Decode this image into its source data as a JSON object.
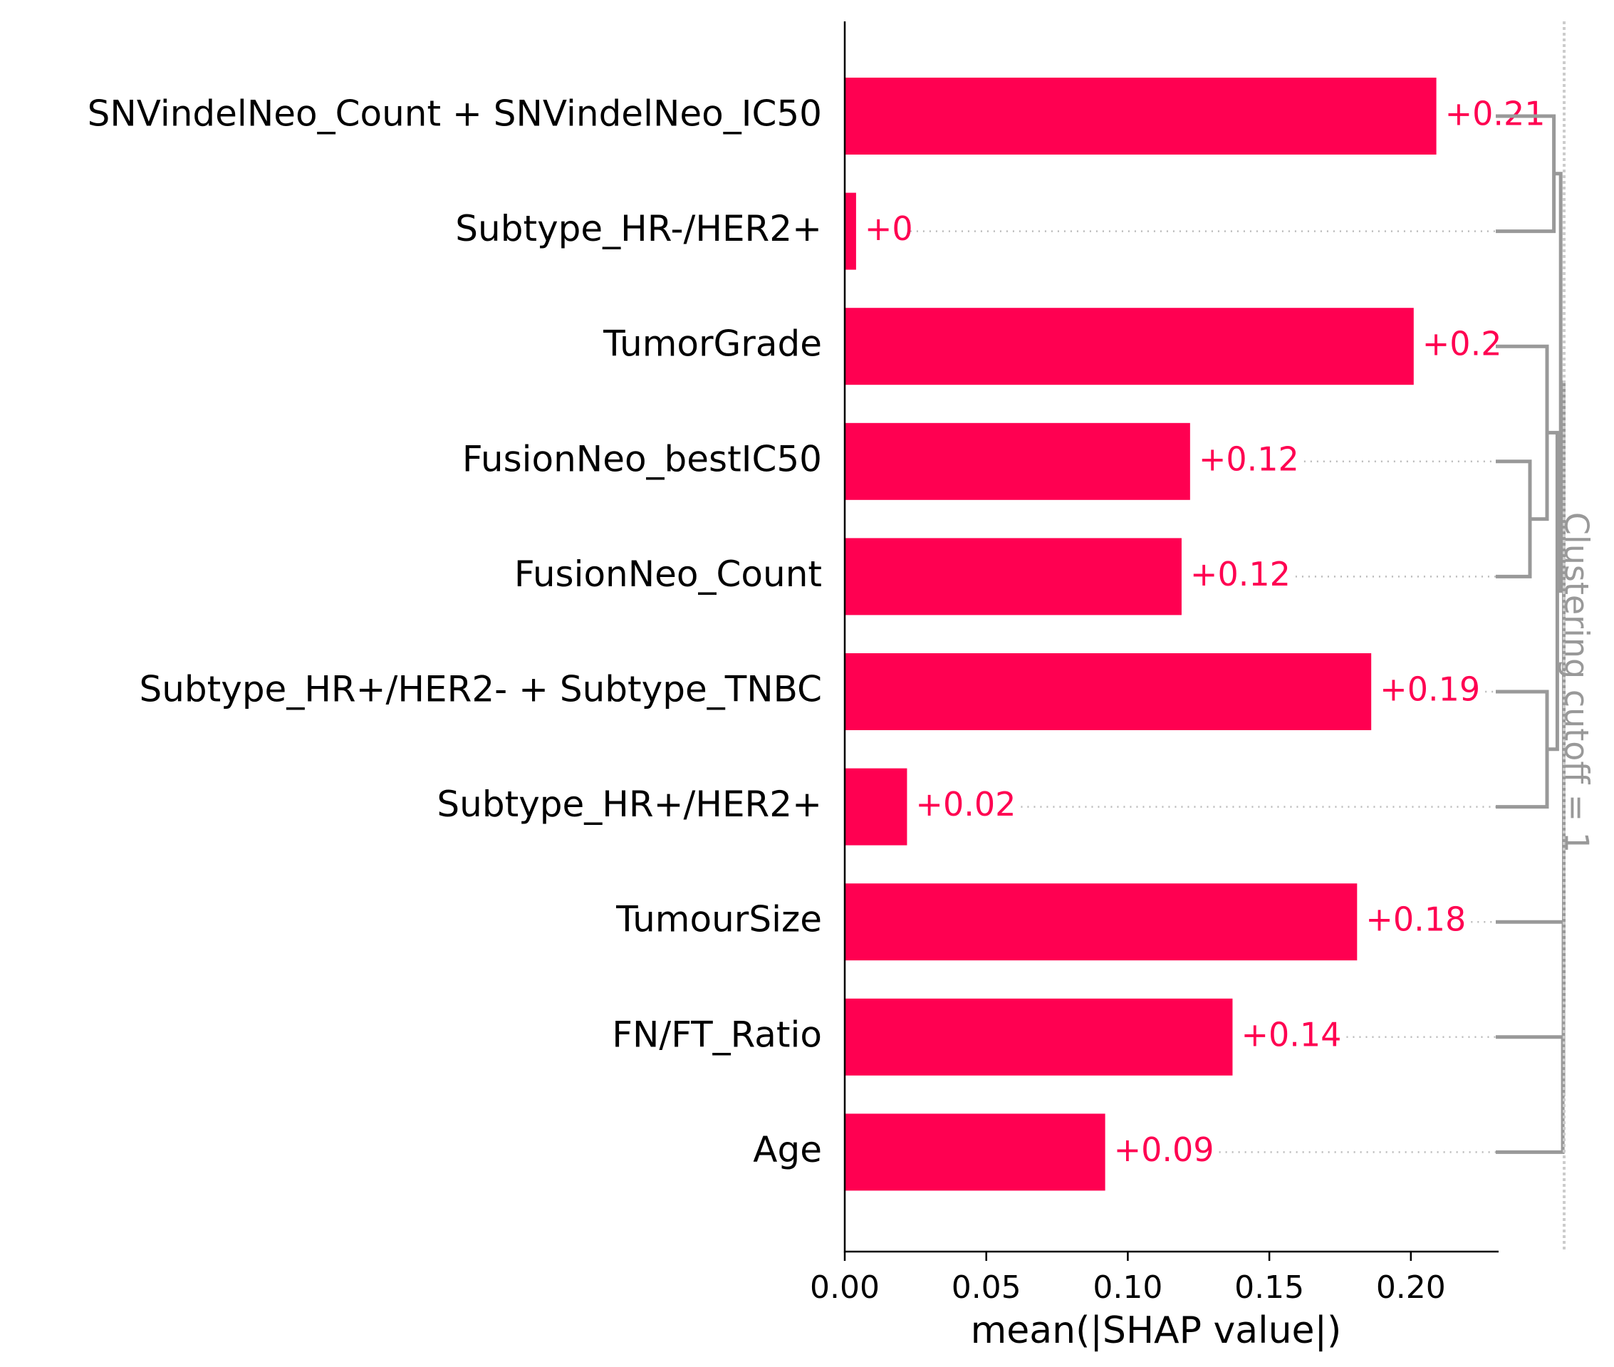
{
  "chart_data": {
    "type": "bar",
    "orientation": "horizontal",
    "categories": [
      "SNVindelNeo_Count + SNVindelNeo_IC50",
      "Subtype_HR-/HER2+",
      "TumorGrade",
      "FusionNeo_bestIC50",
      "FusionNeo_Count",
      "Subtype_HR+/HER2- + Subtype_TNBC",
      "Subtype_HR+/HER2+",
      "TumourSize",
      "FN/FT_Ratio",
      "Age"
    ],
    "values": [
      0.209,
      0.004,
      0.201,
      0.122,
      0.119,
      0.186,
      0.022,
      0.181,
      0.137,
      0.092
    ],
    "value_labels": [
      "+0.21",
      "+0",
      "+0.2",
      "+0.12",
      "+0.12",
      "+0.19",
      "+0.02",
      "+0.18",
      "+0.14",
      "+0.09"
    ],
    "xlabel": "mean(|SHAP value|)",
    "xlim": [
      0,
      0.231
    ],
    "xticks": [
      0,
      0.05,
      0.1,
      0.15,
      0.2
    ],
    "xtick_labels": [
      "0.00",
      "0.05",
      "0.10",
      "0.15",
      "0.20"
    ],
    "cutoff_label": "Clustering cutoff = 1",
    "dendrogram_distances": [
      0.2,
      0.5,
      0.6,
      0.75,
      0.85,
      0.9,
      0.95,
      0.98,
      0.99
    ],
    "colors": {
      "bar": "#ff0051",
      "value_text": "#ff0051",
      "axis": "#000000",
      "dendrogram": "#999999",
      "guide": "#bbbbbb"
    }
  }
}
